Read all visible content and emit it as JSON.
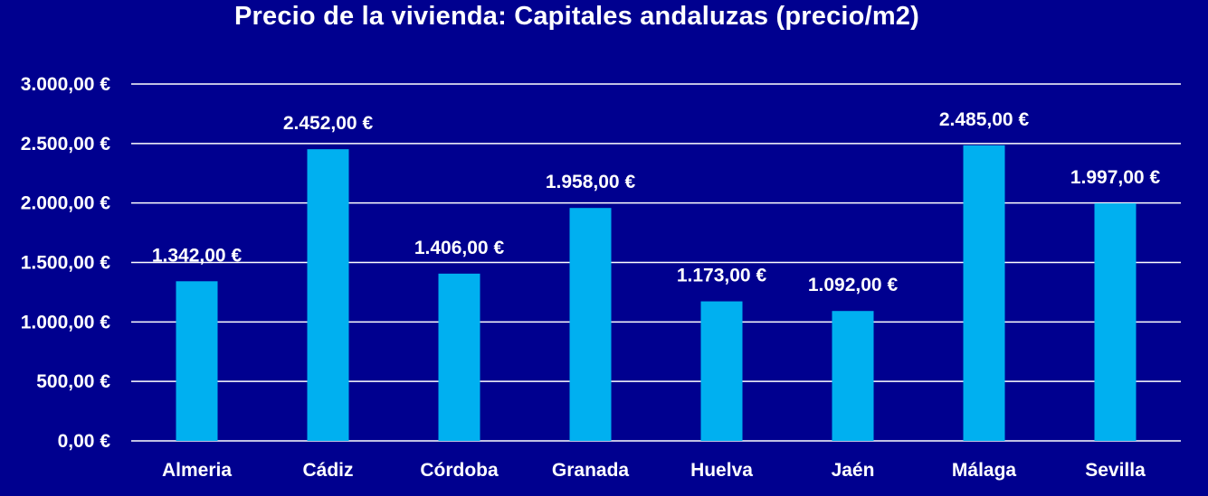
{
  "chart_data": {
    "type": "bar",
    "title": "Precio de la vivienda: Capitales andaluzas (precio/m2)",
    "xlabel": "",
    "ylabel": "",
    "categories": [
      "Almeria",
      "Cádiz",
      "Córdoba",
      "Granada",
      "Huelva",
      "Jaén",
      "Málaga",
      "Sevilla"
    ],
    "values": [
      1342,
      2452,
      1406,
      1958,
      1173,
      1092,
      2485,
      1997
    ],
    "value_labels": [
      "1.342,00 €",
      "2.452,00 €",
      "1.406,00 €",
      "1.958,00 €",
      "1.173,00 €",
      "1.092,00 €",
      "2.485,00 €",
      "1.997,00 €"
    ],
    "ylim": [
      0,
      3000
    ],
    "yticks": [
      0,
      500,
      1000,
      1500,
      2000,
      2500,
      3000
    ],
    "ytick_labels": [
      "0,00 €",
      "500,00 €",
      "1.000,00 €",
      "1.500,00 €",
      "2.000,00 €",
      "2.500,00 €",
      "3.000,00 €"
    ],
    "grid": true,
    "legend": "none"
  },
  "colors": {
    "background": "#00008f",
    "bar": "#00b0f0",
    "grid": "#ffffff",
    "text": "#ffffff"
  }
}
